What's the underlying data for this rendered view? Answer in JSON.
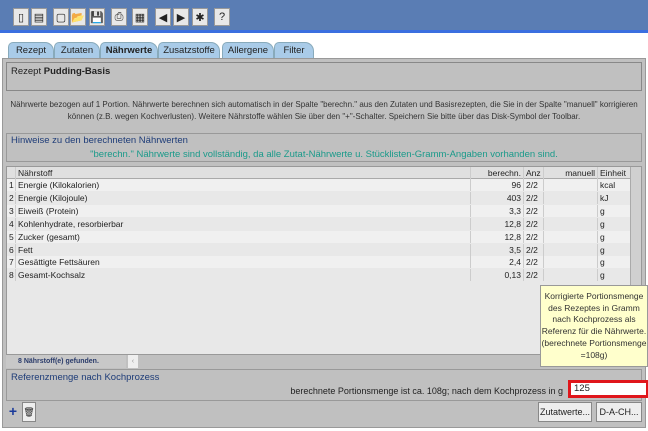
{
  "toolbar": {
    "icons": [
      "book-icon",
      "books-icon",
      "new-document-icon",
      "open-folder-icon",
      "save-disk-icon",
      "print-icon",
      "calculator-icon",
      "previous-icon",
      "next-icon",
      "gear-icon",
      "help-icon"
    ],
    "glyphs": [
      "▯",
      "▤",
      "▢",
      "📂",
      "💾",
      "⎙",
      "▦",
      "◀",
      "▶",
      "✱",
      "?"
    ]
  },
  "tabs": [
    {
      "label": "Rezept"
    },
    {
      "label": "Zutaten"
    },
    {
      "label": "Nährwerte",
      "active": true
    },
    {
      "label": "Zusatzstoffe"
    },
    {
      "label": "Allergene"
    },
    {
      "label": "Filter"
    }
  ],
  "recipe": {
    "label": "Rezept",
    "name": "Pudding-Basis"
  },
  "info": {
    "line1": "Nährwerte bezogen auf 1 Portion. Nährwerte berechnen sich automatisch in der Spalte \"berechn.\" aus den Zutaten und Basisrezepten, die Sie in der Spalte \"manuell\" korrigieren",
    "line2": "können (z.B. wegen Kochverlusten). Weitere Nährstoffe wählen Sie über den \"+\"-Schalter. Speichern Sie bitte über das Disk-Symbol der Toolbar."
  },
  "hints": {
    "title": "Hinweise zu den berechneten Nährwerten",
    "message": "\"berechn.\" Nährwerte sind vollständig, da alle Zutat-Nährwerte u. Stücklisten-Gramm-Angaben vorhanden sind.",
    "message_color": "#1a9a8a"
  },
  "table": {
    "columns": [
      "Nährstoff",
      "berechn.",
      "Anz",
      "manuell",
      "Einheit"
    ],
    "rows": [
      {
        "n": "1",
        "name": "Energie (Kilokalorien)",
        "calc": "96",
        "anz": "2/2",
        "manual": "",
        "unit": "kcal"
      },
      {
        "n": "2",
        "name": "Energie (Kilojoule)",
        "calc": "403",
        "anz": "2/2",
        "manual": "",
        "unit": "kJ"
      },
      {
        "n": "3",
        "name": "Eiweiß (Protein)",
        "calc": "3,3",
        "anz": "2/2",
        "manual": "",
        "unit": "g"
      },
      {
        "n": "4",
        "name": "Kohlenhydrate, resorbierbar",
        "calc": "12,8",
        "anz": "2/2",
        "manual": "",
        "unit": "g"
      },
      {
        "n": "5",
        "name": "Zucker (gesamt)",
        "calc": "12,8",
        "anz": "2/2",
        "manual": "",
        "unit": "g"
      },
      {
        "n": "6",
        "name": "Fett",
        "calc": "3,5",
        "anz": "2/2",
        "manual": "",
        "unit": "g"
      },
      {
        "n": "7",
        "name": "Gesättigte Fettsäuren",
        "calc": "2,4",
        "anz": "2/2",
        "manual": "",
        "unit": "g"
      },
      {
        "n": "8",
        "name": "Gesamt-Kochsalz",
        "calc": "0,13",
        "anz": "2/2",
        "manual": "",
        "unit": "g"
      }
    ]
  },
  "status": {
    "found": "8  Nährstoff(e) gefunden."
  },
  "reference": {
    "title": "Referenzmenge nach Kochprozess",
    "label": "berechnete Portionsmenge ist ca. 108g; nach dem Kochprozess in g",
    "value": "125"
  },
  "tooltip": "Korrigierte Portionsmenge des Rezeptes in Gramm nach Kochprozess als Referenz für die Nährwerte. (berechnete Portionsmenge =108g)",
  "buttons": {
    "add": "+",
    "delete": "🗑",
    "ingredient_values": "Zutatwerte...",
    "dach": "D-A-CH..."
  }
}
